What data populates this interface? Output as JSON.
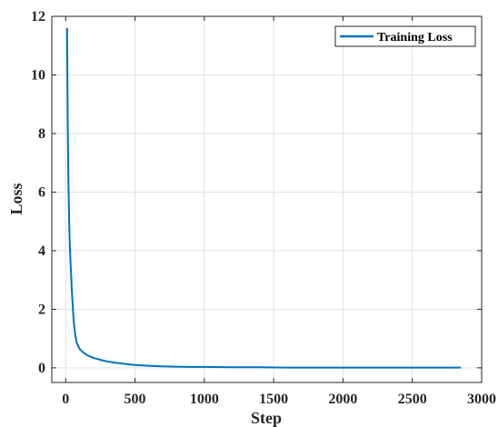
{
  "chart_data": {
    "type": "line",
    "title": "",
    "xlabel": "Step",
    "ylabel": "Loss",
    "xlim": [
      -100,
      3000
    ],
    "ylim": [
      -0.5,
      12
    ],
    "xticks": [
      0,
      500,
      1000,
      1500,
      2000,
      2500,
      3000
    ],
    "yticks": [
      0,
      2,
      4,
      6,
      8,
      10,
      12
    ],
    "xtick_labels": [
      "0",
      "500",
      "1000",
      "1500",
      "2000",
      "2500",
      "3000"
    ],
    "ytick_labels": [
      "0",
      "2",
      "4",
      "6",
      "8",
      "10",
      "12"
    ],
    "grid": true,
    "legend_position": "top-right",
    "series": [
      {
        "name": "Training Loss",
        "color": "#0072bd",
        "x": [
          10,
          15,
          20,
          25,
          30,
          35,
          40,
          45,
          50,
          55,
          60,
          70,
          80,
          90,
          100,
          120,
          140,
          160,
          180,
          200,
          230,
          260,
          300,
          350,
          400,
          450,
          500,
          600,
          700,
          800,
          900,
          1000,
          1200,
          1400,
          1600,
          1800,
          2000,
          2200,
          2400,
          2600,
          2850
        ],
        "y": [
          11.6,
          8.5,
          6.3,
          5.0,
          4.2,
          3.6,
          3.1,
          2.6,
          2.2,
          1.8,
          1.5,
          1.1,
          0.85,
          0.75,
          0.65,
          0.55,
          0.48,
          0.42,
          0.38,
          0.34,
          0.3,
          0.26,
          0.22,
          0.18,
          0.15,
          0.12,
          0.1,
          0.07,
          0.05,
          0.04,
          0.03,
          0.03,
          0.02,
          0.02,
          0.01,
          0.01,
          0.01,
          0.01,
          0.01,
          0.01,
          0.01
        ]
      }
    ]
  }
}
